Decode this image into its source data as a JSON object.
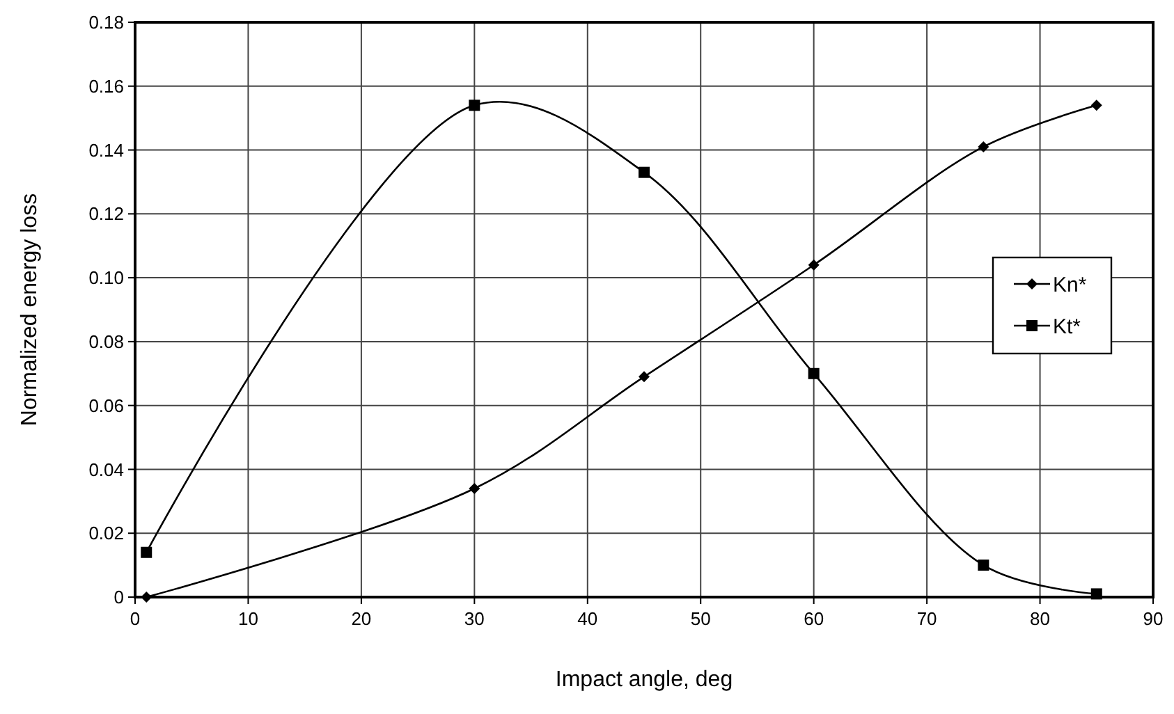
{
  "chart_data": {
    "type": "line",
    "xlabel": "Impact angle, deg",
    "ylabel": "Normalized energy loss",
    "xlim": [
      0,
      90
    ],
    "xticks": [
      0,
      10,
      20,
      30,
      40,
      50,
      60,
      70,
      80,
      90
    ],
    "ylim": [
      0,
      0.18
    ],
    "yticks": [
      {
        "value": 0,
        "label": "0"
      },
      {
        "value": 0.02,
        "label": "0.02"
      },
      {
        "value": 0.04,
        "label": "0.04"
      },
      {
        "value": 0.06,
        "label": "0.06"
      },
      {
        "value": 0.08,
        "label": "0.08"
      },
      {
        "value": 0.1,
        "label": "0.10"
      },
      {
        "value": 0.12,
        "label": "0.12"
      },
      {
        "value": 0.14,
        "label": "0.14"
      },
      {
        "value": 0.16,
        "label": "0.16"
      },
      {
        "value": 0.18,
        "label": "0.18"
      }
    ],
    "grid": true,
    "legend": "right",
    "x": [
      1,
      30,
      45,
      60,
      75,
      85
    ],
    "series": [
      {
        "name": "Kn*",
        "color": "#000000",
        "marker": "diamond",
        "values": [
          0,
          0.034,
          0.069,
          0.104,
          0.141,
          0.154
        ]
      },
      {
        "name": "Kt*",
        "color": "#000000",
        "marker": "square",
        "values": [
          0.014,
          0.154,
          0.133,
          0.07,
          0.01,
          0.001
        ]
      }
    ]
  }
}
